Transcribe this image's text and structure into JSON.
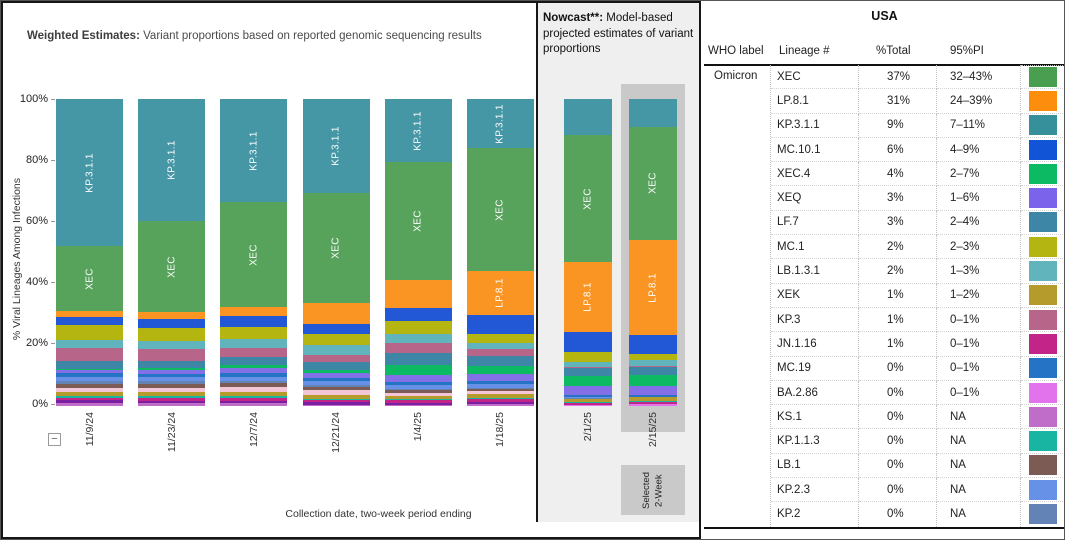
{
  "left_chart": {
    "title_bold": "Weighted Estimates:",
    "title_rest": " Variant proportions based on reported genomic sequencing results",
    "y_axis_label": "% Viral Lineages Among Infections",
    "x_axis_title": "Collection date, two-week period ending",
    "collapse_control": "−"
  },
  "nowcast": {
    "title_bold": "Nowcast**:",
    "title_rest": " Model-based projected estimates of variant proportions",
    "selected_label": "Selected\n2-Week"
  },
  "usa_table": {
    "title": "USA",
    "columns": [
      "WHO label",
      "Lineage #",
      "%Total",
      "95%PI"
    ],
    "who_label": "Omicron",
    "rows": [
      {
        "lineage": "XEC",
        "total": "37%",
        "pi": "32–43%",
        "color": "#4a9e4f"
      },
      {
        "lineage": "LP.8.1",
        "total": "31%",
        "pi": "24–39%",
        "color": "#fd8d0d"
      },
      {
        "lineage": "KP.3.1.1",
        "total": "9%",
        "pi": "7–11%",
        "color": "#35909b"
      },
      {
        "lineage": "MC.10.1",
        "total": "6%",
        "pi": "4–9%",
        "color": "#1155d6"
      },
      {
        "lineage": "XEC.4",
        "total": "4%",
        "pi": "2–7%",
        "color": "#0cba64"
      },
      {
        "lineage": "XEQ",
        "total": "3%",
        "pi": "1–6%",
        "color": "#7b63ec"
      },
      {
        "lineage": "LF.7",
        "total": "3%",
        "pi": "2–4%",
        "color": "#3e86a5"
      },
      {
        "lineage": "MC.1",
        "total": "2%",
        "pi": "2–3%",
        "color": "#b5b511"
      },
      {
        "lineage": "LB.1.3.1",
        "total": "2%",
        "pi": "1–3%",
        "color": "#62b4bc"
      },
      {
        "lineage": "XEK",
        "total": "1%",
        "pi": "1–2%",
        "color": "#b59b2b"
      },
      {
        "lineage": "KP.3",
        "total": "1%",
        "pi": "0–1%",
        "color": "#b76689"
      },
      {
        "lineage": "JN.1.16",
        "total": "1%",
        "pi": "0–1%",
        "color": "#c22488"
      },
      {
        "lineage": "MC.19",
        "total": "0%",
        "pi": "0–1%",
        "color": "#2473c4"
      },
      {
        "lineage": "BA.2.86",
        "total": "0%",
        "pi": "0–1%",
        "color": "#e273ec"
      },
      {
        "lineage": "KS.1",
        "total": "0%",
        "pi": "NA",
        "color": "#bf6dc9"
      },
      {
        "lineage": "KP.1.1.3",
        "total": "0%",
        "pi": "NA",
        "color": "#19b5a3"
      },
      {
        "lineage": "LB.1",
        "total": "0%",
        "pi": "NA",
        "color": "#7c5b54"
      },
      {
        "lineage": "KP.2.3",
        "total": "0%",
        "pi": "NA",
        "color": "#6691e6"
      },
      {
        "lineage": "KP.2",
        "total": "0%",
        "pi": "NA",
        "color": "#6383b6"
      }
    ]
  },
  "chart_data": {
    "type": "bar",
    "stacked": true,
    "title": "Weighted Estimates: Variant proportions based on reported genomic sequencing results",
    "subtitle_nowcast": "Nowcast**: Model-based projected estimates of variant proportions",
    "ylabel": "% Viral Lineages Among Infections",
    "xlabel": "Collection date, two-week period ending",
    "ylim": [
      0,
      100
    ],
    "y_tick_labels": [
      "100%",
      "80%",
      "60%",
      "40%",
      "20%",
      "0%"
    ],
    "legend_position": "right-table",
    "grid": false,
    "colors": {
      "XEC": "#58a35c",
      "LP.8.1": "#fa9422",
      "KP.3.1.1": "#4697a6",
      "MC.10.1": "#2257d6",
      "XEC.4": "#0cba64",
      "XEQ": "#8470e6",
      "LF.7": "#3e86a5",
      "MC.1": "#b5b511",
      "LB.1.3.1": "#62b4bc",
      "XEK": "#b59b2b",
      "KP.3": "#b76689",
      "JN.1.16": "#c22488",
      "MC.19": "#2473c4",
      "BA.2.86": "#e273ec",
      "KS.1": "#bf6dc9",
      "KP.1.1.3": "#19b5a3",
      "LB.1": "#7c5b54",
      "KP.2.3": "#6691e6",
      "KP.2": "#6383b6",
      "other-pink": "#f2c6d6",
      "other-purple": "#7a1fa2"
    },
    "weighted_bars": [
      {
        "date": "11/9/24",
        "segments": [
          [
            "KP.3.1.1",
            48,
            1
          ],
          [
            "XEC",
            21,
            1
          ],
          [
            "LP.8.1",
            1.9,
            0
          ],
          [
            "MC.10.1",
            2.6,
            0
          ],
          [
            "MC.1",
            5,
            0
          ],
          [
            "LB.1.3.1",
            2.6,
            0
          ],
          [
            "KP.3",
            4.4,
            0
          ],
          [
            "LF.7",
            2.4,
            0
          ],
          [
            "XEC.4",
            0.4,
            0
          ],
          [
            "XEQ",
            1,
            0
          ],
          [
            "MC.19",
            1.2,
            0
          ],
          [
            "KP.2.3",
            1.5,
            0
          ],
          [
            "KP.2",
            0.8,
            0
          ],
          [
            "LB.1",
            1.5,
            0
          ],
          [
            "other-pink",
            1.3,
            0
          ],
          [
            "XEK",
            1.2,
            0
          ],
          [
            "KP.1.1.3",
            0.6,
            0
          ],
          [
            "JN.1.16",
            0.8,
            0
          ],
          [
            "other-purple",
            0.8,
            0
          ],
          [
            "KS.1",
            1,
            0
          ]
        ]
      },
      {
        "date": "11/23/24",
        "segments": [
          [
            "KP.3.1.1",
            39.8,
            1
          ],
          [
            "XEC",
            29.7,
            1
          ],
          [
            "LP.8.1",
            2.3,
            0
          ],
          [
            "MC.10.1",
            2.7,
            0
          ],
          [
            "MC.1",
            4.2,
            0
          ],
          [
            "LB.1.3.1",
            2.6,
            0
          ],
          [
            "KP.3",
            4.2,
            0
          ],
          [
            "LF.7",
            2.1,
            0
          ],
          [
            "XEC.4",
            0.8,
            0
          ],
          [
            "XEQ",
            1.1,
            0
          ],
          [
            "MC.19",
            1.1,
            0
          ],
          [
            "KP.2.3",
            1.4,
            0
          ],
          [
            "KP.2",
            0.8,
            0
          ],
          [
            "LB.1",
            1.4,
            0
          ],
          [
            "other-pink",
            1.4,
            0
          ],
          [
            "XEK",
            1.3,
            0
          ],
          [
            "KP.1.1.3",
            0.5,
            0
          ],
          [
            "JN.1.16",
            0.9,
            0
          ],
          [
            "other-purple",
            0.9,
            0
          ],
          [
            "KS.1",
            0.8,
            0
          ]
        ]
      },
      {
        "date": "12/7/24",
        "segments": [
          [
            "KP.3.1.1",
            33.7,
            1
          ],
          [
            "XEC",
            34,
            1
          ],
          [
            "LP.8.1",
            3,
            0
          ],
          [
            "MC.10.1",
            3.6,
            0
          ],
          [
            "MC.1",
            3.8,
            0
          ],
          [
            "LB.1.3.1",
            3.1,
            0
          ],
          [
            "KP.3",
            2.9,
            0
          ],
          [
            "LF.7",
            2.7,
            0
          ],
          [
            "XEC.4",
            1,
            0
          ],
          [
            "XEQ",
            1.5,
            0
          ],
          [
            "MC.19",
            1.2,
            0
          ],
          [
            "KP.2.3",
            1.3,
            0
          ],
          [
            "KP.2",
            0.8,
            0
          ],
          [
            "LB.1",
            1.3,
            0
          ],
          [
            "other-pink",
            1.6,
            0
          ],
          [
            "XEK",
            1.4,
            0
          ],
          [
            "KP.1.1.3",
            0.5,
            0
          ],
          [
            "JN.1.16",
            0.9,
            0
          ],
          [
            "other-purple",
            0.9,
            0
          ],
          [
            "KS.1",
            0.8,
            0
          ]
        ]
      },
      {
        "date": "12/21/24",
        "segments": [
          [
            "KP.3.1.1",
            30.6,
            1
          ],
          [
            "XEC",
            36.1,
            1
          ],
          [
            "LP.8.1",
            6.7,
            0
          ],
          [
            "MC.10.1",
            3.4,
            0
          ],
          [
            "MC.1",
            3.5,
            0
          ],
          [
            "LB.1.3.1",
            3.1,
            0
          ],
          [
            "KP.3",
            2.4,
            0
          ],
          [
            "LF.7",
            2.5,
            0
          ],
          [
            "XEC.4",
            1.2,
            0
          ],
          [
            "XEQ",
            1.6,
            0
          ],
          [
            "MC.19",
            1,
            0
          ],
          [
            "KP.2.3",
            1.2,
            0
          ],
          [
            "KP.2",
            0.7,
            0
          ],
          [
            "LB.1",
            1,
            0
          ],
          [
            "other-pink",
            1.6,
            0
          ],
          [
            "XEK",
            1.2,
            0
          ],
          [
            "KP.1.1.3",
            0.4,
            0
          ],
          [
            "JN.1.16",
            0.8,
            0
          ],
          [
            "other-purple",
            0.7,
            0
          ],
          [
            "KS.1",
            0.5,
            0
          ]
        ]
      },
      {
        "date": "1/4/25",
        "segments": [
          [
            "KP.3.1.1",
            20.6,
            1
          ],
          [
            "XEC",
            38.4,
            1
          ],
          [
            "LP.8.1",
            9,
            0
          ],
          [
            "MC.10.1",
            4.4,
            0
          ],
          [
            "MC.1",
            4.1,
            0
          ],
          [
            "LB.1.3.1",
            3.1,
            0
          ],
          [
            "KP.3",
            3.3,
            0
          ],
          [
            "LF.7",
            3.7,
            0
          ],
          [
            "XEC.4",
            3.2,
            0
          ],
          [
            "XEQ",
            2.5,
            0
          ],
          [
            "MC.19",
            0.9,
            0
          ],
          [
            "KP.2.3",
            1.2,
            0
          ],
          [
            "KP.2",
            0.5,
            0
          ],
          [
            "LB.1",
            0.8,
            0
          ],
          [
            "other-pink",
            1,
            0
          ],
          [
            "XEK",
            1.1,
            0
          ],
          [
            "KP.1.1.3",
            0.4,
            0
          ],
          [
            "JN.1.16",
            0.9,
            0
          ],
          [
            "other-purple",
            0.5,
            0
          ],
          [
            "KS.1",
            0.4,
            0
          ]
        ]
      },
      {
        "date": "1/18/25",
        "segments": [
          [
            "KP.3.1.1",
            16,
            1
          ],
          [
            "XEC",
            40,
            1
          ],
          [
            "LP.8.1",
            14.5,
            1
          ],
          [
            "MC.10.1",
            5.9,
            0
          ],
          [
            "MC.1",
            3,
            0
          ],
          [
            "LB.1.3.1",
            2,
            0
          ],
          [
            "KP.3",
            2.3,
            0
          ],
          [
            "LF.7",
            3.2,
            0
          ],
          [
            "XEC.4",
            2.7,
            0
          ],
          [
            "XEQ",
            2.4,
            0
          ],
          [
            "MC.19",
            0.8,
            0
          ],
          [
            "KP.2.3",
            1.3,
            0
          ],
          [
            "KP.2",
            0.4,
            0
          ],
          [
            "LB.1",
            0.6,
            0
          ],
          [
            "other-pink",
            0.9,
            0
          ],
          [
            "XEK",
            1.5,
            0
          ],
          [
            "KP.1.1.3",
            0.4,
            0
          ],
          [
            "JN.1.16",
            1,
            0
          ],
          [
            "other-purple",
            0.6,
            0
          ],
          [
            "KS.1",
            0.5,
            0
          ]
        ]
      }
    ],
    "nowcast_bars": [
      {
        "date": "2/1/25",
        "selected": false,
        "segments": [
          [
            "KP.3.1.1",
            11.7,
            0
          ],
          [
            "XEC",
            41.5,
            1
          ],
          [
            "LP.8.1",
            22.8,
            1
          ],
          [
            "MC.10.1",
            6.5,
            0
          ],
          [
            "MC.1",
            3.1,
            0
          ],
          [
            "LB.1.3.1",
            1.8,
            0
          ],
          [
            "KP.3",
            0.4,
            0
          ],
          [
            "LF.7",
            2.6,
            0
          ],
          [
            "XEC.4",
            3.1,
            0
          ],
          [
            "XEQ",
            3,
            0
          ],
          [
            "MC.19",
            0.5,
            0
          ],
          [
            "KP.2.3",
            0.4,
            0
          ],
          [
            "KP.2",
            0.3,
            0
          ],
          [
            "XEK",
            0.9,
            0
          ],
          [
            "LB.1",
            0.3,
            0
          ],
          [
            "KP.1.1.3",
            0.3,
            0
          ],
          [
            "JN.1.16",
            0.4,
            0
          ],
          [
            "BA.2.86",
            0.4,
            0
          ]
        ]
      },
      {
        "date": "2/15/25",
        "selected": true,
        "segments": [
          [
            "KP.3.1.1",
            9,
            0
          ],
          [
            "XEC",
            37,
            1
          ],
          [
            "LP.8.1",
            31,
            1
          ],
          [
            "MC.10.1",
            6,
            0
          ],
          [
            "MC.1",
            2,
            0
          ],
          [
            "LB.1.3.1",
            2,
            0
          ],
          [
            "KP.3",
            0.5,
            0
          ],
          [
            "LF.7",
            2.6,
            0
          ],
          [
            "XEC.4",
            3.5,
            0
          ],
          [
            "XEQ",
            3,
            0
          ],
          [
            "MC.19",
            0.4,
            0
          ],
          [
            "KP.2.3",
            0.3,
            0
          ],
          [
            "XEK",
            1,
            0
          ],
          [
            "LB.1",
            0.3,
            0
          ],
          [
            "KP.1.1.3",
            0.3,
            0
          ],
          [
            "JN.1.16",
            0.6,
            0
          ],
          [
            "BA.2.86",
            0.6,
            0
          ]
        ]
      }
    ]
  }
}
